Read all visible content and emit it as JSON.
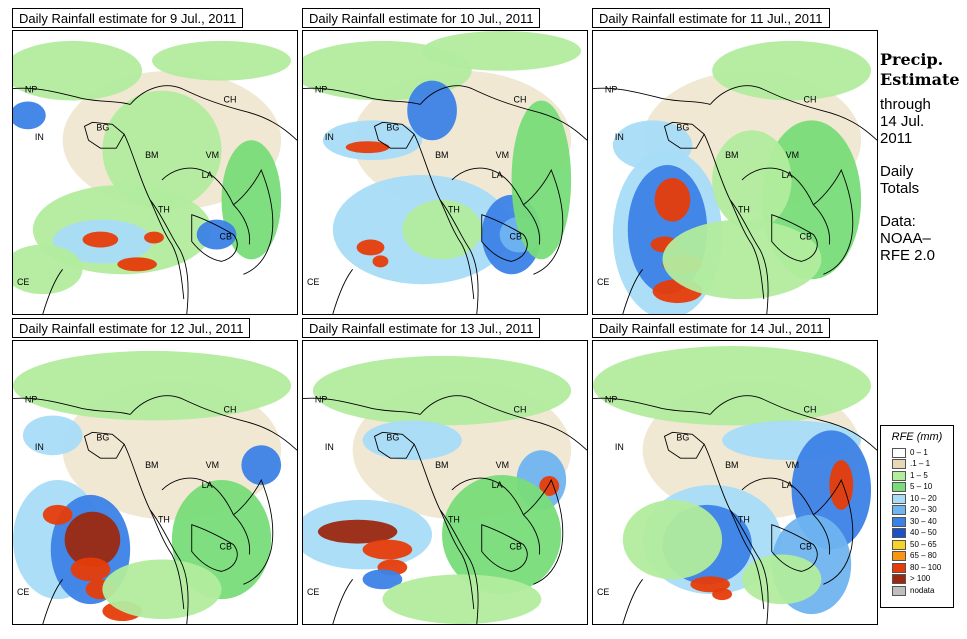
{
  "panels": [
    {
      "title": "Daily Rainfall estimate for  9 Jul., 2011",
      "variant": 0
    },
    {
      "title": "Daily Rainfall estimate for  10 Jul., 2011",
      "variant": 1
    },
    {
      "title": "Daily Rainfall estimate for  11 Jul., 2011",
      "variant": 2
    },
    {
      "title": "Daily Rainfall estimate for  12 Jul., 2011",
      "variant": 3
    },
    {
      "title": "Daily Rainfall estimate for  13 Jul., 2011",
      "variant": 4
    },
    {
      "title": "Daily Rainfall estimate for  14 Jul., 2011",
      "variant": 5
    }
  ],
  "country_labels": [
    "NP",
    "CH",
    "IN",
    "BG",
    "BM",
    "VM",
    "LA",
    "TH",
    "CB",
    "CE"
  ],
  "side_panel": {
    "heading_line1": "Precip.",
    "heading_line2": "Estimate",
    "through_label": "through",
    "date_line1": "14 Jul.",
    "date_line2": "2011",
    "period_line1": "Daily",
    "period_line2": "Totals",
    "data_line1": "Data:",
    "data_line2": "NOAA–",
    "data_line3": "RFE 2.0"
  },
  "legend": {
    "title": "RFE (mm)",
    "items": [
      {
        "label": "0 – 1",
        "color": "#ffffff"
      },
      {
        "label": ".1 – 1",
        "color": "#e8d8b8"
      },
      {
        "label": "1 – 5",
        "color": "#b2ec9e"
      },
      {
        "label": "5 – 10",
        "color": "#78dc78"
      },
      {
        "label": "10 – 20",
        "color": "#a8dcf8"
      },
      {
        "label": "20 – 30",
        "color": "#70b4f0"
      },
      {
        "label": "30 – 40",
        "color": "#3c82e6"
      },
      {
        "label": "40 – 50",
        "color": "#1e50c8"
      },
      {
        "label": "50 – 65",
        "color": "#f8d228"
      },
      {
        "label": "65 – 80",
        "color": "#f89614"
      },
      {
        "label": "80 – 100",
        "color": "#e63c0a"
      },
      {
        "label": "> 100",
        "color": "#9c2810"
      },
      {
        "label": "nodata",
        "color": "#bebebe"
      }
    ]
  }
}
